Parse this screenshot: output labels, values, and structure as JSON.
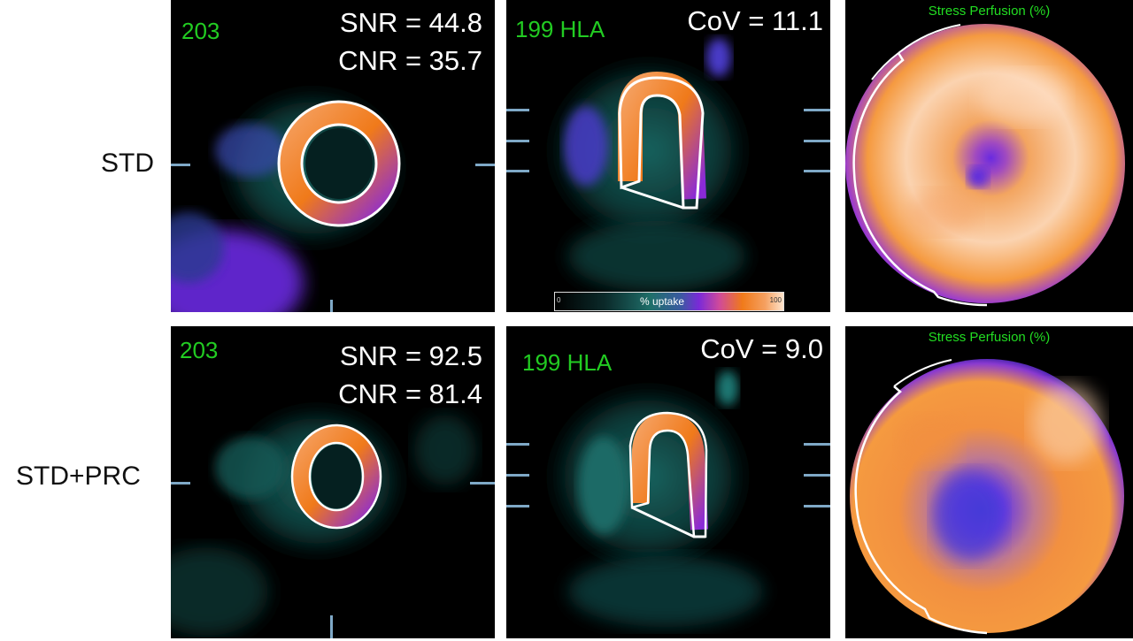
{
  "rows": [
    {
      "label": "STD",
      "short_axis": {
        "slice": "203",
        "snr": "SNR = 44.8",
        "cnr": "CNR = 35.7"
      },
      "hla": {
        "slice": "199 HLA",
        "cov": "CoV = 11.1"
      },
      "polar_map": {
        "title": "Stress Perfusion (%)"
      }
    },
    {
      "label": "STD+PRC",
      "short_axis": {
        "slice": "203",
        "snr": "SNR = 92.5",
        "cnr": "CNR = 81.4"
      },
      "hla": {
        "slice": "199 HLA",
        "cov": "CoV = 9.0"
      },
      "polar_map": {
        "title": "Stress Perfusion (%)"
      }
    }
  ],
  "colorbar": {
    "label": "% uptake",
    "min": "0",
    "max": "100"
  },
  "colors": {
    "label_green": "#22cc22",
    "tick_blue": "#7fa9c7",
    "teal": "#1f6f6a",
    "purple": "#7a2ad8",
    "orange": "#f08a2a"
  }
}
